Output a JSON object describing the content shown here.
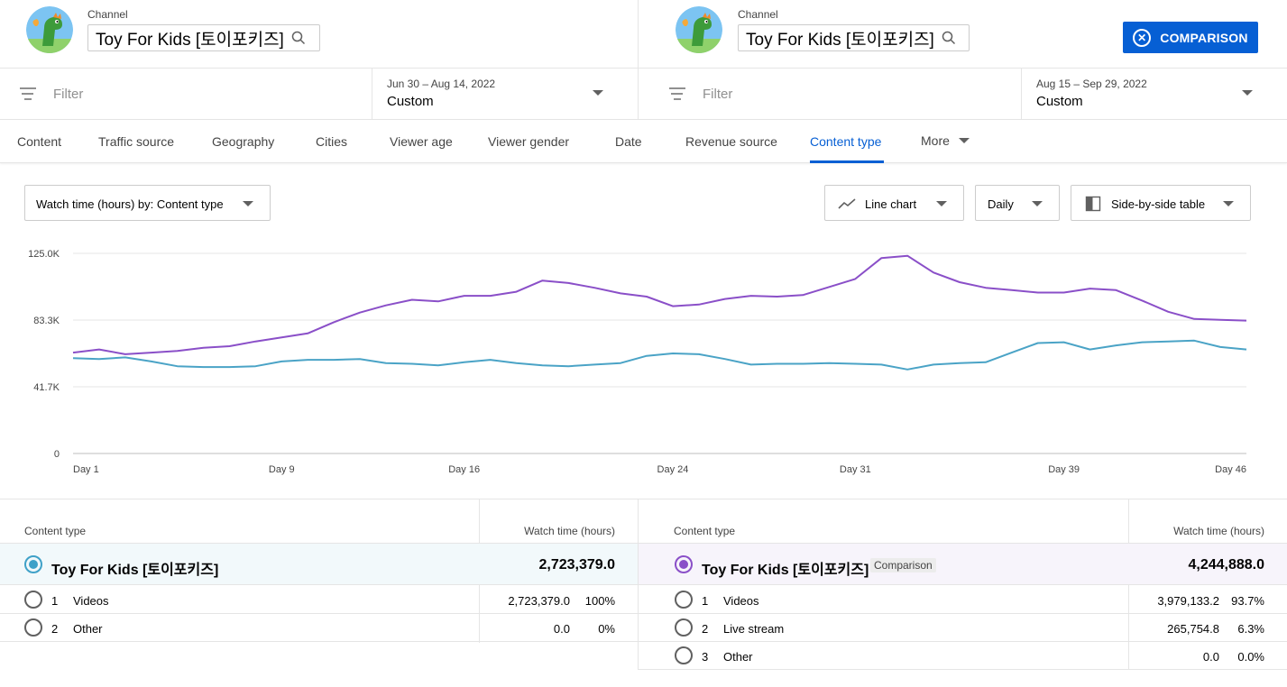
{
  "header": {
    "left": {
      "channel_label": "Channel",
      "channel_name": "Toy For Kids [토이포키즈]"
    },
    "right": {
      "channel_label": "Channel",
      "channel_name": "Toy For Kids [토이포키즈]"
    },
    "comparison_button": "COMPARISON"
  },
  "filters": {
    "left": {
      "placeholder": "Filter",
      "date_range": "Jun 30 – Aug 14, 2022",
      "date_mode": "Custom"
    },
    "right": {
      "placeholder": "Filter",
      "date_range": "Aug 15 – Sep 29, 2022",
      "date_mode": "Custom"
    }
  },
  "tabs": [
    "Content",
    "Traffic source",
    "Geography",
    "Cities",
    "Viewer age",
    "Viewer gender",
    "Date",
    "Revenue source",
    "Content type",
    "More"
  ],
  "active_tab": "Content type",
  "controls": {
    "metric": "Watch time (hours) by: Content type",
    "chart_type": "Line chart",
    "interval": "Daily",
    "table_mode": "Side-by-side table"
  },
  "chart_data": {
    "type": "line",
    "x_tick_labels": [
      "Day 1",
      "Day 9",
      "Day 16",
      "Day 24",
      "Day 31",
      "Day 39",
      "Day 46"
    ],
    "x_ticks": [
      1,
      9,
      16,
      24,
      31,
      39,
      46
    ],
    "y_tick_labels": [
      "0",
      "41.7K",
      "83.3K",
      "125.0K"
    ],
    "y_ticks": [
      0,
      41700,
      83300,
      125000
    ],
    "ylim": [
      0,
      125000
    ],
    "xlim": [
      1,
      46
    ],
    "grid": true,
    "series": [
      {
        "color": "#8a4fc8",
        "x": [
          1,
          2,
          3,
          4,
          5,
          6,
          7,
          8,
          9,
          10,
          11,
          12,
          13,
          14,
          15,
          16,
          17,
          18,
          19,
          20,
          21,
          22,
          23,
          24,
          25,
          26,
          27,
          28,
          29,
          30,
          31,
          32,
          33,
          34,
          35,
          36,
          37,
          38,
          39,
          40,
          41,
          42,
          43,
          44,
          45,
          46
        ],
        "values": [
          63000,
          65000,
          62000,
          63000,
          64000,
          66000,
          67000,
          70000,
          72500,
          75000,
          82000,
          88000,
          92500,
          96000,
          95000,
          98500,
          98500,
          101000,
          108000,
          106500,
          103500,
          100000,
          98000,
          92000,
          93000,
          96500,
          98500,
          98000,
          99000,
          104000,
          109000,
          122000,
          123500,
          113000,
          107000,
          103500,
          102000,
          100500,
          100500,
          103000,
          102000,
          95500,
          88500,
          84000,
          83500,
          83000
        ]
      },
      {
        "color": "#4aa3c6",
        "x": [
          1,
          2,
          3,
          4,
          5,
          6,
          7,
          8,
          9,
          10,
          11,
          12,
          13,
          14,
          15,
          16,
          17,
          18,
          19,
          20,
          21,
          22,
          23,
          24,
          25,
          26,
          27,
          28,
          29,
          30,
          31,
          32,
          33,
          34,
          35,
          36,
          37,
          38,
          39,
          40,
          41,
          42,
          43,
          44,
          45,
          46
        ],
        "values": [
          59500,
          59000,
          60000,
          57500,
          54500,
          54000,
          54000,
          54500,
          57500,
          58500,
          58500,
          59000,
          56500,
          56000,
          55000,
          57000,
          58500,
          56500,
          55000,
          54500,
          55500,
          56500,
          61000,
          62500,
          62000,
          59000,
          55500,
          56000,
          56000,
          56500,
          56000,
          55500,
          52500,
          55500,
          56500,
          57000,
          63000,
          69000,
          69500,
          65000,
          67500,
          69500,
          70000,
          70500,
          66500,
          65000
        ]
      }
    ]
  },
  "table_left": {
    "col_type": "Content type",
    "col_metric": "Watch time (hours)",
    "total": {
      "name": "Toy For Kids [토이포키즈]",
      "value": "2,723,379.0"
    },
    "rows": [
      {
        "idx": "1",
        "name": "Videos",
        "value": "2,723,379.0",
        "pct": "100%"
      },
      {
        "idx": "2",
        "name": "Other",
        "value": "0.0",
        "pct": "0%"
      }
    ]
  },
  "table_right": {
    "col_type": "Content type",
    "col_metric": "Watch time (hours)",
    "total": {
      "name": "Toy For Kids [토이포키즈]",
      "badge": "Comparison",
      "value": "4,244,888.0"
    },
    "rows": [
      {
        "idx": "1",
        "name": "Videos",
        "value": "3,979,133.2",
        "pct": "93.7%"
      },
      {
        "idx": "2",
        "name": "Live stream",
        "value": "265,754.8",
        "pct": "6.3%"
      },
      {
        "idx": "3",
        "name": "Other",
        "value": "0.0",
        "pct": "0.0%"
      }
    ]
  }
}
